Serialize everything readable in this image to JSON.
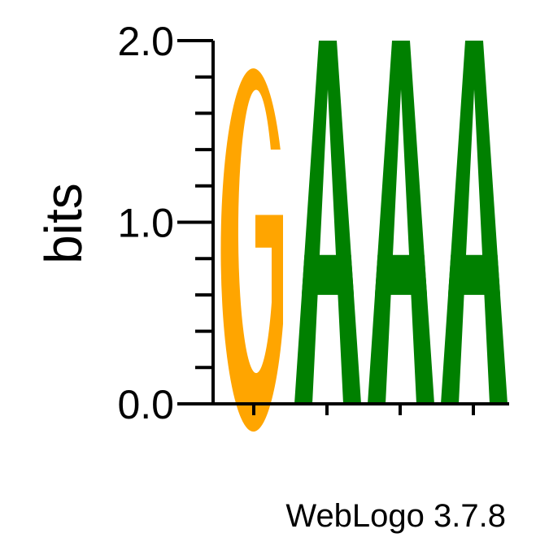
{
  "chart_data": {
    "type": "sequence-logo",
    "ylabel": "bits",
    "ylim": [
      0,
      2
    ],
    "y_ticks": [
      "0.0",
      "1.0",
      "2.0"
    ],
    "y_minor_step": 0.2,
    "positions": [
      {
        "letter": "G",
        "bits": 2.0,
        "color": "#FFA500"
      },
      {
        "letter": "A",
        "bits": 2.0,
        "color": "#008000"
      },
      {
        "letter": "A",
        "bits": 2.0,
        "color": "#008000"
      },
      {
        "letter": "A",
        "bits": 2.0,
        "color": "#008000"
      }
    ],
    "footer": "WebLogo 3.7.8"
  }
}
